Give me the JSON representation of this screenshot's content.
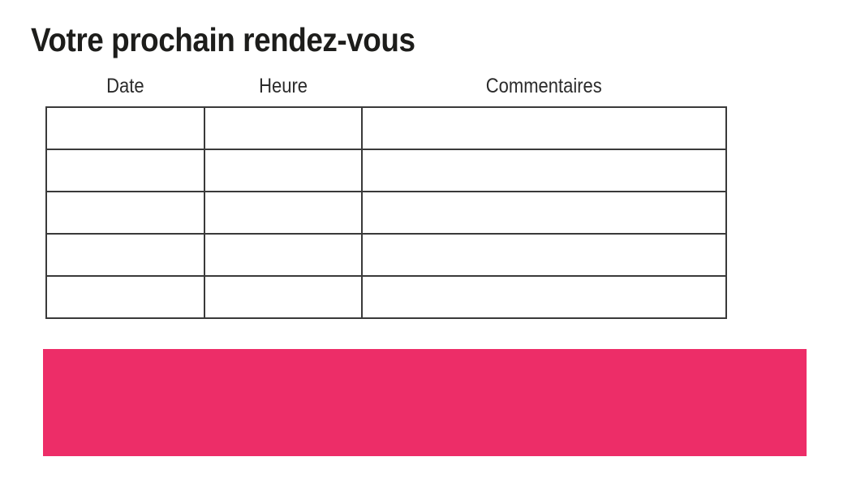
{
  "page": {
    "title": "Votre prochain rendez-vous",
    "background": "#ffffff"
  },
  "appointments_table": {
    "columns": [
      "Date",
      "Heure",
      "Commentaires"
    ],
    "rows": [
      [
        "",
        "",
        ""
      ],
      [
        "",
        "",
        ""
      ],
      [
        "",
        "",
        ""
      ],
      [
        "",
        "",
        ""
      ],
      [
        "",
        "",
        ""
      ]
    ]
  },
  "accent_bar": {
    "color": "#ED2D68"
  },
  "colors": {
    "title_text": "#1d1d1b",
    "header_text": "#2b2b2b",
    "table_border": "#3a3a3a"
  }
}
